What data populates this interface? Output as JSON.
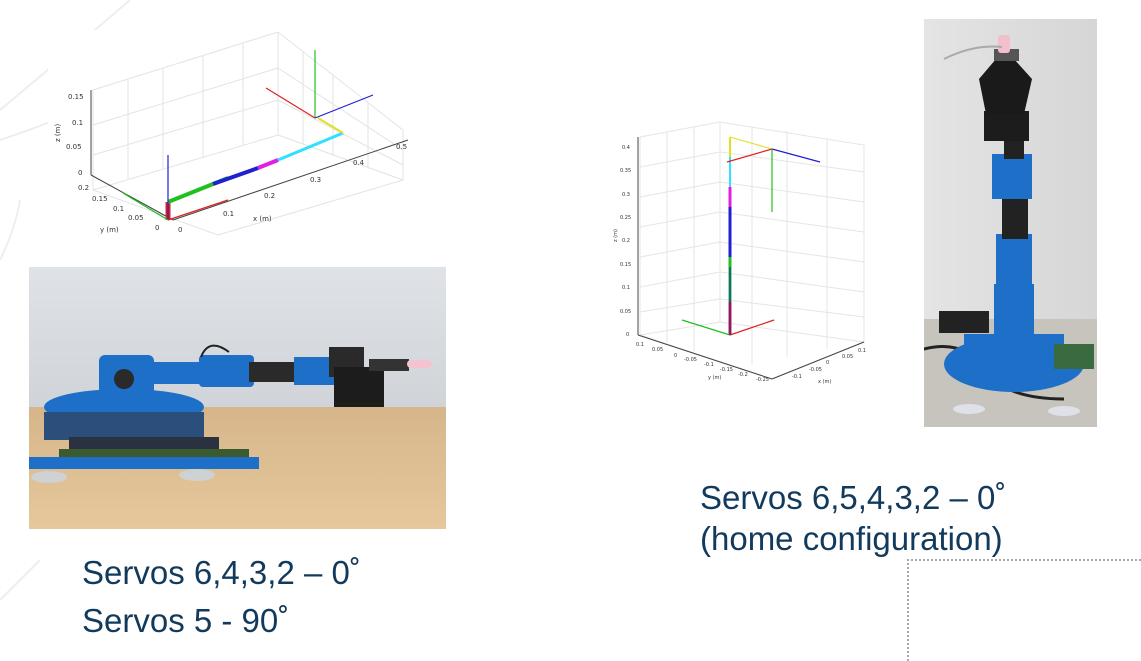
{
  "plot_left": {
    "z_label": "z (m)",
    "y_label": "y (m)",
    "x_label": "x (m)",
    "z_ticks": [
      "0.15",
      "0.1",
      "0.05",
      "0"
    ],
    "y_ticks": [
      "0.2",
      "0.15",
      "0.1",
      "0.05",
      "0"
    ],
    "x_ticks": [
      "0",
      "0.1",
      "0.2",
      "0.3",
      "0.4",
      "0.5"
    ]
  },
  "plot_right": {
    "z_label": "z (m)",
    "y_label": "y (m)",
    "x_label": "x (m)",
    "z_ticks": [
      "0.4",
      "0.35",
      "0.3",
      "0.25",
      "0.2",
      "0.15",
      "0.1",
      "0.05",
      "0"
    ],
    "y_ticks": [
      "0.1",
      "0.05",
      "0",
      "-0.05",
      "-0.1",
      "-0.15",
      "-0.2",
      "-0.25"
    ],
    "x_ticks": [
      "-0.1",
      "-0.05",
      "0",
      "0.05",
      "0.1"
    ]
  },
  "captions": {
    "left_line1": "Servos 6,4,3,2 – 0˚",
    "left_line2": "Servos 5 - 90˚",
    "right_line1": "Servos 6,5,4,3,2 – 0˚",
    "right_line2": "(home configuration)"
  },
  "colors": {
    "caption": "#123a5c",
    "robot_blue": "#1e6fc8",
    "axis_red": "#e02020",
    "axis_green": "#20c020",
    "axis_blue": "#2020d0"
  }
}
